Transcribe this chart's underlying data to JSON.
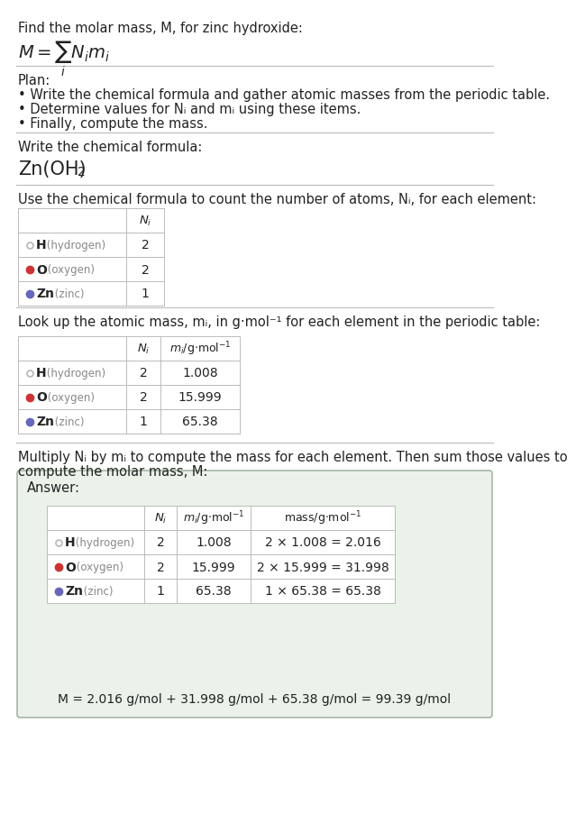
{
  "title_line1": "Find the molar mass, M, for zinc hydroxide:",
  "bg_color": "#ffffff",
  "separator_color": "#bbbbbb",
  "plan_header": "Plan:",
  "plan_bullets": [
    "• Write the chemical formula and gather atomic masses from the periodic table.",
    "• Determine values for Nᵢ and mᵢ using these items.",
    "• Finally, compute the mass."
  ],
  "formula_header": "Write the chemical formula:",
  "count_header": "Use the chemical formula to count the number of atoms, Nᵢ, for each element:",
  "elements": [
    "H",
    "O",
    "Zn"
  ],
  "element_names": [
    "hydrogen",
    "oxygen",
    "zinc"
  ],
  "element_colors": [
    "#bbbbbb",
    "#cc3333",
    "#6666bb"
  ],
  "element_dot_open": [
    true,
    false,
    false
  ],
  "Ni_values": [
    "2",
    "2",
    "1"
  ],
  "mi_values": [
    "1.008",
    "15.999",
    "65.38"
  ],
  "mass_exprs": [
    "2 × 1.008 = 2.016",
    "2 × 15.999 = 31.998",
    "1 × 65.38 = 65.38"
  ],
  "lookup_header": "Look up the atomic mass, mᵢ, in g·mol⁻¹ for each element in the periodic table:",
  "multiply_header1": "Multiply Nᵢ by mᵢ to compute the mass for each element. Then sum those values to",
  "multiply_header2": "compute the molar mass, M:",
  "answer_label": "Answer:",
  "final_eq": "M = 2.016 g/mol + 31.998 g/mol + 65.38 g/mol = 99.39 g/mol",
  "answer_box_color": "#eaf2ea",
  "answer_box_border": "#99aa99",
  "text_color": "#222222",
  "light_text": "#888888",
  "table_line_color": "#bbbbbb",
  "font_size_main": 10.5,
  "font_size_small": 9.5
}
